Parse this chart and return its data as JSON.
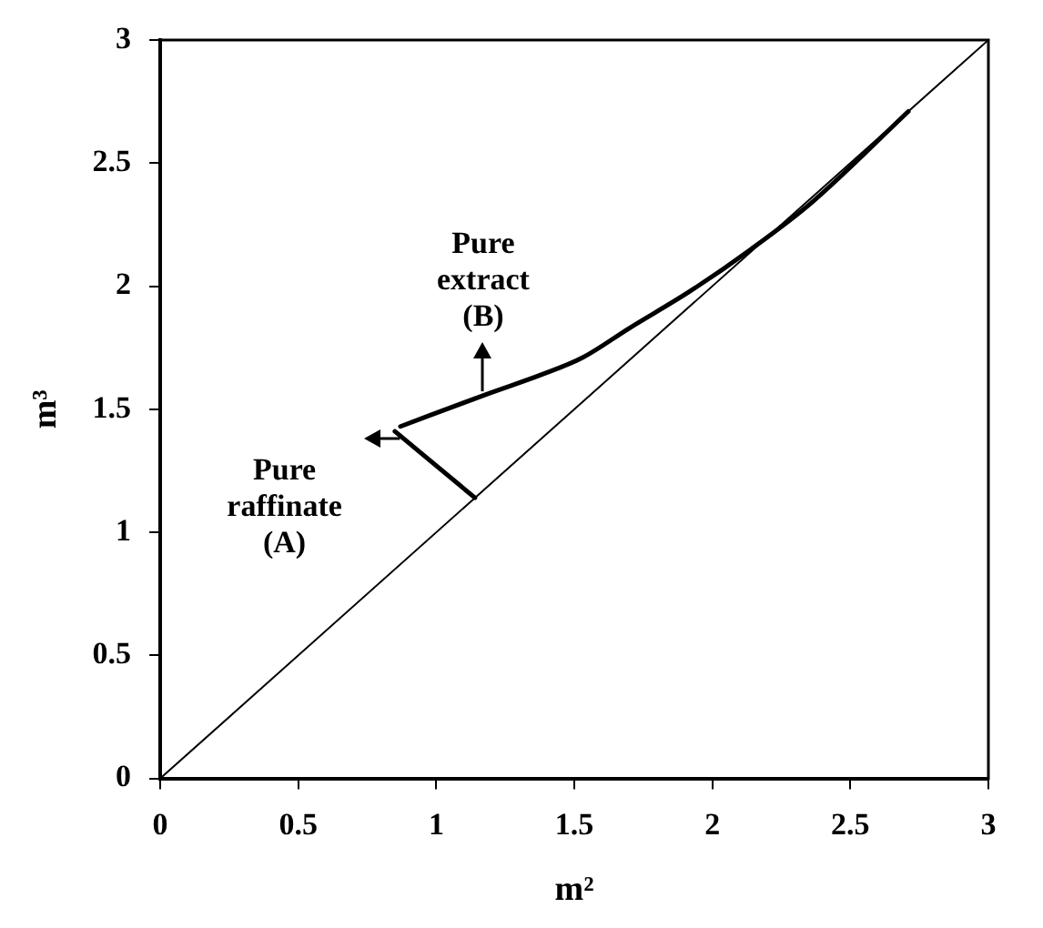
{
  "chart_data": {
    "type": "line",
    "xlabel": "m²",
    "ylabel": "m³",
    "xlim": [
      0,
      3
    ],
    "ylim": [
      0,
      3
    ],
    "xticks": [
      0,
      0.5,
      1,
      1.5,
      2,
      2.5,
      3
    ],
    "yticks": [
      0,
      0.5,
      1,
      1.5,
      2,
      2.5,
      3
    ],
    "grid": false,
    "legend": false,
    "marker": "none",
    "series": [
      {
        "color": "#000000",
        "x": [
          0,
          3
        ],
        "values": [
          0,
          3
        ]
      },
      {
        "color": "#000000",
        "x": [
          0.87,
          1.18,
          1.38,
          1.53,
          1.7,
          1.92,
          2.14,
          2.36,
          2.71
        ],
        "values": [
          1.43,
          1.56,
          1.64,
          1.71,
          1.83,
          1.98,
          2.15,
          2.34,
          2.71
        ]
      },
      {
        "color": "#000000",
        "x": [
          0.85,
          1.14
        ],
        "values": [
          1.41,
          1.14
        ]
      }
    ],
    "annotations": [
      {
        "text": "Pure extract (B)",
        "x": 1.17,
        "y": 1.57
      },
      {
        "text": "Pure raffinate (A)",
        "x": 0.87,
        "y": 1.38
      }
    ]
  }
}
